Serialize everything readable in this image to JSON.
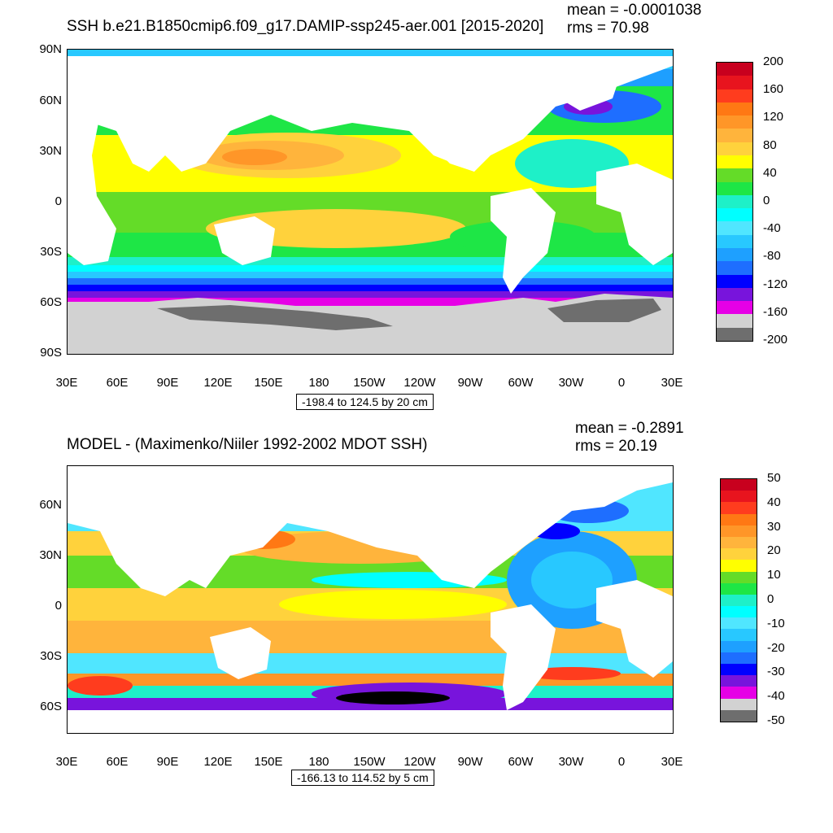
{
  "panels": [
    {
      "title": "SSH b.e21.B1850cmip6.f09_g17.DAMIP-ssp245-aer.001 [2015-2020]",
      "mean": "mean = -0.0001038",
      "rms": "rms = 70.98",
      "range": "-198.4 to 124.5 by 20 cm",
      "lat_labels": [
        "90N",
        "60N",
        "30N",
        "0",
        "30S",
        "60S",
        "90S"
      ],
      "lon_labels": [
        "30E",
        "60E",
        "90E",
        "120E",
        "150E",
        "180",
        "150W",
        "120W",
        "90W",
        "60W",
        "30W",
        "0",
        "30E"
      ],
      "colorbar_labels": [
        "200",
        "160",
        "120",
        "80",
        "40",
        "0",
        "-40",
        "-80",
        "-120",
        "-160",
        "-200"
      ],
      "colorbar_colors": [
        "#c8001e",
        "#e8141e",
        "#ff3c1e",
        "#ff7814",
        "#ff9628",
        "#ffb43c",
        "#ffd23c",
        "#ffff00",
        "#64dc28",
        "#1ee646",
        "#1ef0c8",
        "#00ffff",
        "#50e6ff",
        "#28c8ff",
        "#1ea0ff",
        "#1e6eff",
        "#0000ff",
        "#7814dc",
        "#e600e6",
        "#d2d2d2",
        "#6e6e6e"
      ]
    },
    {
      "title": "MODEL - (Maximenko/Niiler 1992-2002 MDOT SSH)",
      "mean": "mean = -0.2891",
      "rms": "rms = 20.19",
      "range": "-166.13 to 114.52 by 5 cm",
      "lat_labels": [
        "60N",
        "30N",
        "0",
        "30S",
        "60S"
      ],
      "lon_labels": [
        "30E",
        "60E",
        "90E",
        "120E",
        "150E",
        "180",
        "150W",
        "120W",
        "90W",
        "60W",
        "30W",
        "0",
        "30E"
      ],
      "colorbar_labels": [
        "50",
        "40",
        "30",
        "20",
        "10",
        "0",
        "-10",
        "-20",
        "-30",
        "-40",
        "-50"
      ],
      "colorbar_colors": [
        "#c8001e",
        "#e8141e",
        "#ff3c1e",
        "#ff7814",
        "#ff9628",
        "#ffb43c",
        "#ffd23c",
        "#ffff00",
        "#64dc28",
        "#1ee646",
        "#1ef0c8",
        "#00ffff",
        "#50e6ff",
        "#28c8ff",
        "#1ea0ff",
        "#1e6eff",
        "#0000ff",
        "#7814dc",
        "#e600e6",
        "#d2d2d2",
        "#6e6e6e"
      ]
    }
  ]
}
